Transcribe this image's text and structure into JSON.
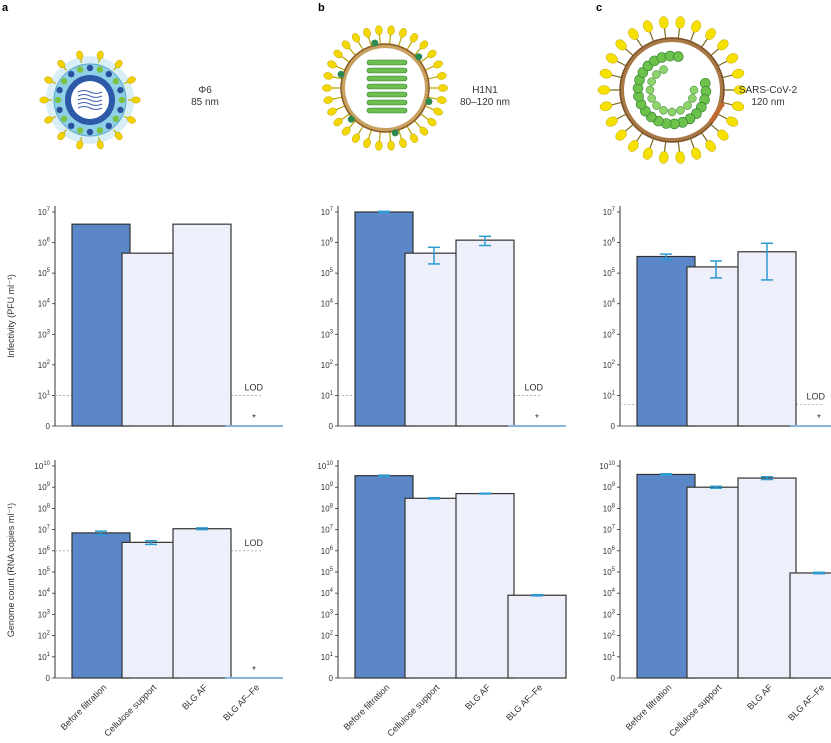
{
  "panels": [
    {
      "letter": "a",
      "virus": "Φ6",
      "size": "85 nm"
    },
    {
      "letter": "b",
      "virus": "H1N1",
      "size": "80–120 nm"
    },
    {
      "letter": "c",
      "virus": "SARS-CoV-2",
      "size": "120 nm"
    }
  ],
  "colors": {
    "before": "#5b87c9",
    "other": "#edf0fa",
    "outline": "#333333",
    "error": "#2e9ad0",
    "lod_line": "#aaaaaa"
  },
  "lod_label": "LOD",
  "star_label": "*",
  "chart_data": [
    {
      "type": "bar",
      "panel": "a",
      "row": "infectivity",
      "categories": [
        "Before filtration",
        "Cellulose support",
        "BLG AF",
        "BLG AF–Fe"
      ],
      "values": [
        4000000.0,
        450000.0,
        4000000.0,
        0
      ],
      "errors": [
        null,
        null,
        null,
        null
      ],
      "ylabel": "Infectivity (PFU ml⁻¹)",
      "yscale": "log",
      "ylim_exp": [
        0,
        7
      ],
      "lod": 10,
      "star_index": 3,
      "lod_shown": true
    },
    {
      "type": "bar",
      "panel": "b",
      "row": "infectivity",
      "categories": [
        "Before filtration",
        "Cellulose support",
        "BLG AF",
        "BLG AF–Fe"
      ],
      "values": [
        10000000.0,
        450000.0,
        1200000.0,
        0
      ],
      "errors": [
        [
          9500000.0,
          10500000.0
        ],
        [
          200000.0,
          700000.0
        ],
        [
          800000.0,
          1600000.0
        ],
        null
      ],
      "ylabel": "",
      "yscale": "log",
      "ylim_exp": [
        0,
        7
      ],
      "lod": 10,
      "star_index": 3,
      "lod_shown": true
    },
    {
      "type": "bar",
      "panel": "c",
      "row": "infectivity",
      "categories": [
        "Before filtration",
        "Cellulose support",
        "BLG AF",
        "BLG AF–Fe"
      ],
      "values": [
        350000.0,
        160000.0,
        500000.0,
        0
      ],
      "errors": [
        [
          280000.0,
          420000.0
        ],
        [
          70000.0,
          250000.0
        ],
        [
          60000.0,
          950000.0
        ],
        null
      ],
      "ylabel": "",
      "yscale": "log",
      "ylim_exp": [
        0,
        7
      ],
      "lod": 5,
      "star_index": 3,
      "lod_shown": true
    },
    {
      "type": "bar",
      "panel": "a",
      "row": "genome",
      "categories": [
        "Before filtration",
        "Cellulose support",
        "BLG AF",
        "BLG AF–Fe"
      ],
      "values": [
        7000000.0,
        2500000.0,
        11000000.0,
        0
      ],
      "errors": [
        [
          5500000.0,
          8500000.0
        ],
        [
          2000000.0,
          3000000.0
        ],
        [
          10000000.0,
          12000000.0
        ],
        null
      ],
      "ylabel": "Genome count (RNA copies ml⁻¹)",
      "yscale": "log",
      "ylim_exp": [
        0,
        10
      ],
      "lod": 1000000.0,
      "star_index": 3,
      "lod_shown": true
    },
    {
      "type": "bar",
      "panel": "b",
      "row": "genome",
      "categories": [
        "Before filtration",
        "Cellulose support",
        "BLG AF",
        "BLG AF–Fe"
      ],
      "values": [
        3500000000.0,
        300000000.0,
        500000000.0,
        8000.0
      ],
      "errors": [
        [
          3300000000.0,
          3700000000.0
        ],
        [
          280000000.0,
          320000000.0
        ],
        [
          480000000.0,
          520000000.0
        ],
        [
          7500.0,
          8500.0
        ]
      ],
      "ylabel": "",
      "yscale": "log",
      "ylim_exp": [
        0,
        10
      ],
      "lod": null,
      "star_index": null,
      "lod_shown": false
    },
    {
      "type": "bar",
      "panel": "c",
      "row": "genome",
      "categories": [
        "Before filtration",
        "Cellulose support",
        "BLG AF",
        "BLG AF–Fe"
      ],
      "values": [
        4000000000.0,
        1000000000.0,
        2700000000.0,
        90000.0
      ],
      "errors": [
        [
          3700000000.0,
          4300000000.0
        ],
        [
          900000000.0,
          1100000000.0
        ],
        [
          2300000000.0,
          3100000000.0
        ],
        [
          83000.0,
          97000.0
        ]
      ],
      "ylabel": "",
      "yscale": "log",
      "ylim_exp": [
        0,
        10
      ],
      "lod": null,
      "star_index": null,
      "lod_shown": false
    }
  ]
}
